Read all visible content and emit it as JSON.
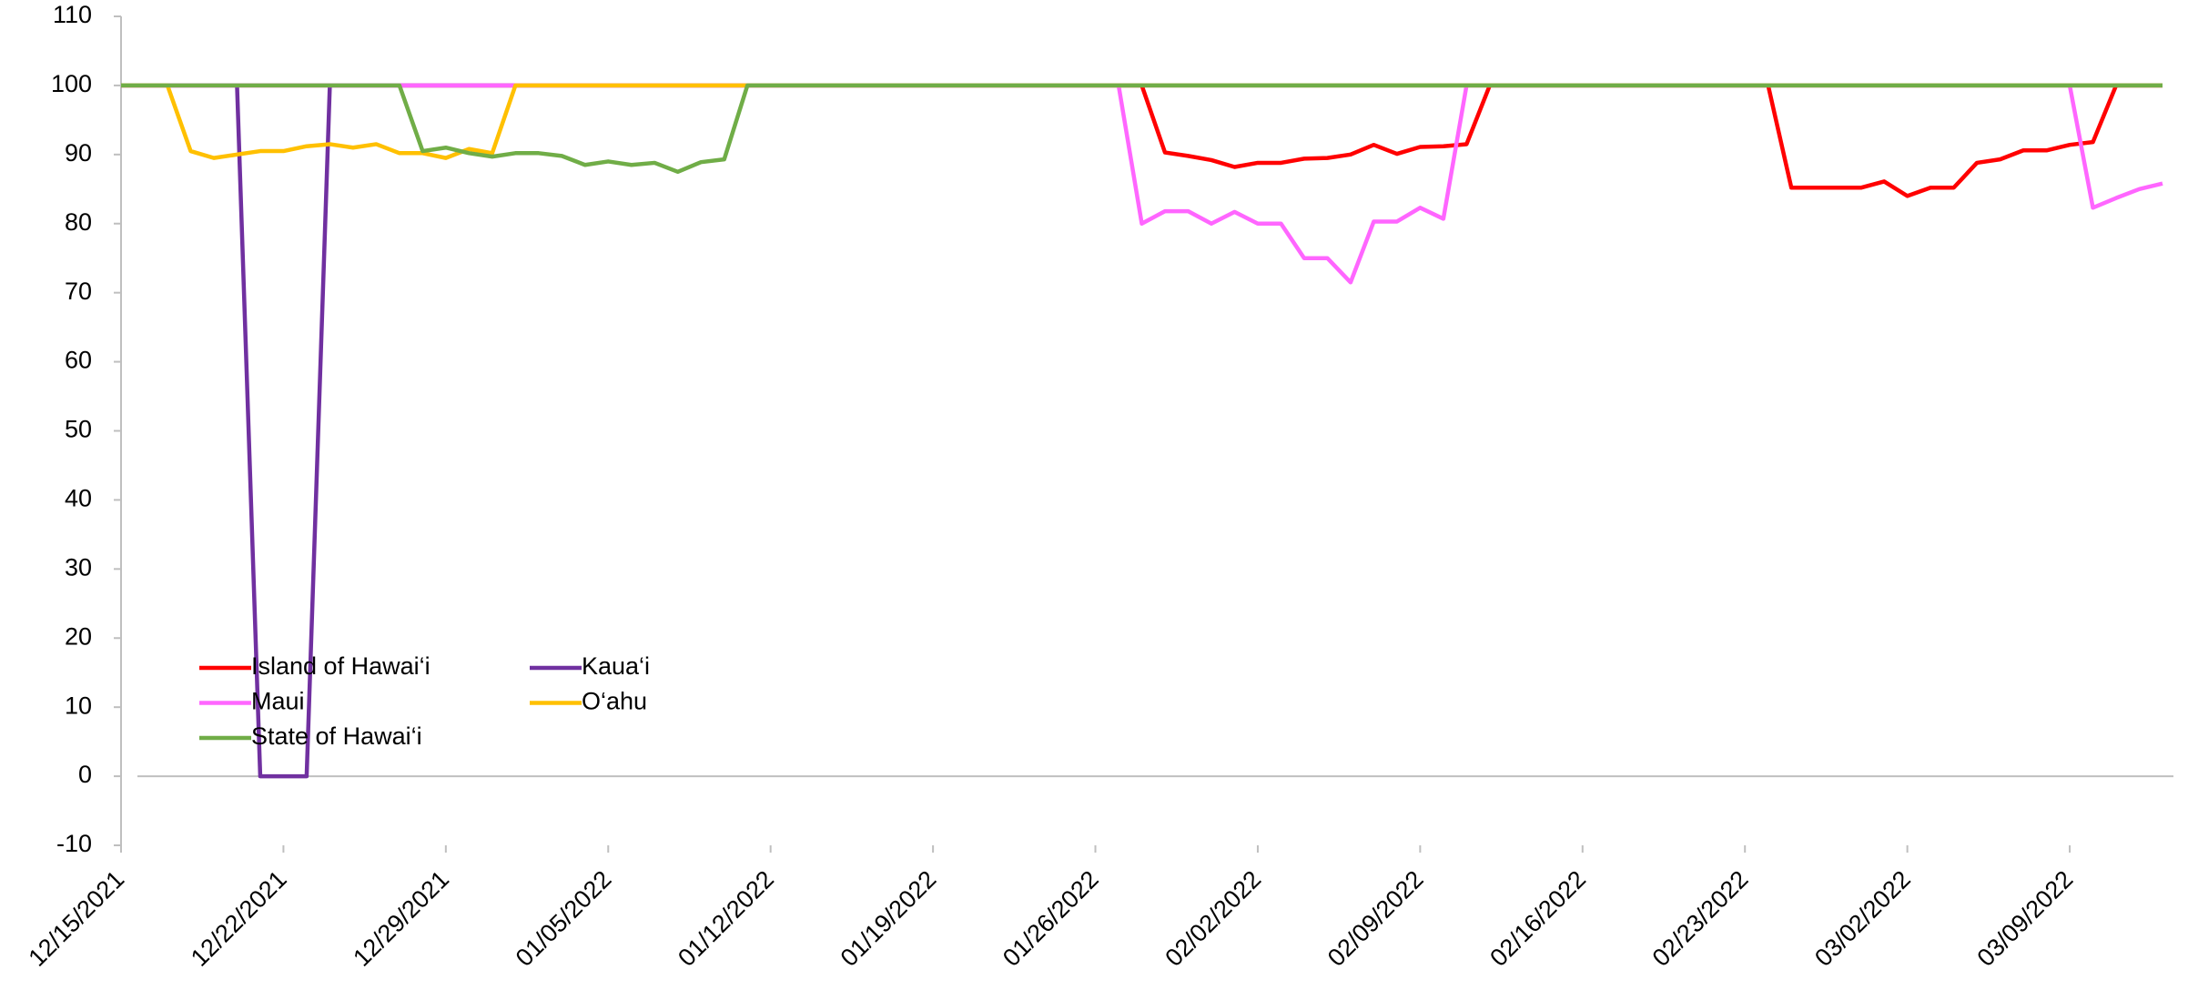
{
  "chart_data": {
    "type": "line",
    "x": [
      "12/15/2021",
      "12/16/2021",
      "12/17/2021",
      "12/18/2021",
      "12/19/2021",
      "12/20/2021",
      "12/21/2021",
      "12/22/2021",
      "12/23/2021",
      "12/24/2021",
      "12/25/2021",
      "12/26/2021",
      "12/27/2021",
      "12/28/2021",
      "12/29/2021",
      "12/30/2021",
      "12/31/2021",
      "01/01/2022",
      "01/02/2022",
      "01/03/2022",
      "01/04/2022",
      "01/05/2022",
      "01/06/2022",
      "01/07/2022",
      "01/08/2022",
      "01/09/2022",
      "01/10/2022",
      "01/11/2022",
      "01/12/2022",
      "01/13/2022",
      "01/14/2022",
      "01/15/2022",
      "01/16/2022",
      "01/17/2022",
      "01/18/2022",
      "01/19/2022",
      "01/20/2022",
      "01/21/2022",
      "01/22/2022",
      "01/23/2022",
      "01/24/2022",
      "01/25/2022",
      "01/26/2022",
      "01/27/2022",
      "01/28/2022",
      "01/29/2022",
      "01/30/2022",
      "01/31/2022",
      "02/01/2022",
      "02/02/2022",
      "02/03/2022",
      "02/04/2022",
      "02/05/2022",
      "02/06/2022",
      "02/07/2022",
      "02/08/2022",
      "02/09/2022",
      "02/10/2022",
      "02/11/2022",
      "02/12/2022",
      "02/13/2022",
      "02/14/2022",
      "02/15/2022",
      "02/16/2022",
      "02/17/2022",
      "02/18/2022",
      "02/19/2022",
      "02/20/2022",
      "02/21/2022",
      "02/22/2022",
      "02/23/2022",
      "02/24/2022",
      "02/25/2022",
      "02/26/2022",
      "02/27/2022",
      "02/28/2022",
      "03/01/2022",
      "03/02/2022",
      "03/03/2022",
      "03/04/2022",
      "03/05/2022",
      "03/06/2022",
      "03/07/2022",
      "03/08/2022",
      "03/09/2022",
      "03/10/2022",
      "03/11/2022",
      "03/12/2022",
      "03/13/2022"
    ],
    "series": [
      {
        "name": "Island of Hawai‘i",
        "color": "#ff0000",
        "values": [
          100,
          100,
          100,
          100,
          100,
          100,
          100,
          100,
          100,
          100,
          100,
          100,
          100,
          100,
          100,
          100,
          100,
          100,
          100,
          100,
          100,
          100,
          100,
          100,
          100,
          100,
          100,
          100,
          100,
          100,
          100,
          100,
          100,
          100,
          100,
          100,
          100,
          100,
          100,
          100,
          100,
          100,
          100,
          100,
          100,
          90.3,
          89.8,
          89.2,
          88.2,
          88.8,
          88.8,
          89.4,
          89.5,
          90,
          91.4,
          90.1,
          91.1,
          91.2,
          91.5,
          100,
          100,
          100,
          100,
          100,
          100,
          100,
          100,
          100,
          100,
          100,
          100,
          100,
          85.2,
          85.2,
          85.2,
          85.2,
          86.1,
          84,
          85.2,
          85.2,
          88.8,
          89.3,
          90.6,
          90.6,
          91.4,
          91.8,
          100,
          100,
          100
        ]
      },
      {
        "name": "Kaua‘i",
        "color": "#7030a0",
        "values": [
          100,
          100,
          100,
          100,
          100,
          100,
          0,
          0,
          0,
          100,
          100,
          100,
          100,
          100,
          100,
          100,
          100,
          100,
          100,
          100,
          100,
          100,
          100,
          100,
          100,
          100,
          100,
          100,
          100,
          100,
          100,
          100,
          100,
          100,
          100,
          100,
          100,
          100,
          100,
          100,
          100,
          100,
          100,
          100,
          100,
          100,
          100,
          100,
          100,
          100,
          100,
          100,
          100,
          100,
          100,
          100,
          100,
          100,
          100,
          100,
          100,
          100,
          100,
          100,
          100,
          100,
          100,
          100,
          100,
          100,
          100,
          100,
          100,
          100,
          100,
          100,
          100,
          100,
          100,
          100,
          100,
          100,
          100,
          100,
          100,
          100,
          100,
          100,
          100
        ]
      },
      {
        "name": "Maui",
        "color": "#ff66ff",
        "values": [
          100,
          100,
          100,
          100,
          100,
          100,
          100,
          100,
          100,
          100,
          100,
          100,
          100,
          100,
          100,
          100,
          100,
          100,
          100,
          100,
          100,
          100,
          100,
          100,
          100,
          100,
          100,
          100,
          100,
          100,
          100,
          100,
          100,
          100,
          100,
          100,
          100,
          100,
          100,
          100,
          100,
          100,
          100,
          100,
          80,
          81.8,
          81.8,
          80,
          81.7,
          80,
          80,
          75,
          75,
          71.5,
          80.3,
          80.3,
          82.3,
          80.7,
          100,
          100,
          100,
          100,
          100,
          100,
          100,
          100,
          100,
          100,
          100,
          100,
          100,
          100,
          100,
          100,
          100,
          100,
          100,
          100,
          100,
          100,
          100,
          100,
          100,
          100,
          100,
          82.3,
          83.7,
          85,
          85.8
        ]
      },
      {
        "name": "O‘ahu",
        "color": "#ffc000",
        "values": [
          100,
          100,
          100,
          90.5,
          89.5,
          90,
          90.5,
          90.5,
          91.2,
          91.5,
          91,
          91.5,
          90.2,
          90.2,
          89.5,
          90.8,
          90.2,
          100,
          100,
          100,
          100,
          100,
          100,
          100,
          100,
          100,
          100,
          100,
          100,
          100,
          100,
          100,
          100,
          100,
          100,
          100,
          100,
          100,
          100,
          100,
          100,
          100,
          100,
          100,
          100,
          100,
          100,
          100,
          100,
          100,
          100,
          100,
          100,
          100,
          100,
          100,
          100,
          100,
          100,
          100,
          100,
          100,
          100,
          100,
          100,
          100,
          100,
          100,
          100,
          100,
          100,
          100,
          100,
          100,
          100,
          100,
          100,
          100,
          100,
          100,
          100,
          100,
          100,
          100,
          100,
          100,
          100,
          100,
          100
        ]
      },
      {
        "name": "State of Hawai‘i",
        "color": "#70ad47",
        "values": [
          100,
          100,
          100,
          100,
          100,
          100,
          100,
          100,
          100,
          100,
          100,
          100,
          100,
          90.5,
          91,
          90.2,
          89.7,
          90.2,
          90.2,
          89.8,
          88.5,
          89,
          88.5,
          88.8,
          87.5,
          88.9,
          89.3,
          100,
          100,
          100,
          100,
          100,
          100,
          100,
          100,
          100,
          100,
          100,
          100,
          100,
          100,
          100,
          100,
          100,
          100,
          100,
          100,
          100,
          100,
          100,
          100,
          100,
          100,
          100,
          100,
          100,
          100,
          100,
          100,
          100,
          100,
          100,
          100,
          100,
          100,
          100,
          100,
          100,
          100,
          100,
          100,
          100,
          100,
          100,
          100,
          100,
          100,
          100,
          100,
          100,
          100,
          100,
          100,
          100,
          100,
          100,
          100,
          100,
          100
        ]
      }
    ],
    "xlim": [
      "12/15/2021",
      "03/13/2022"
    ],
    "xticks": [
      "12/15/2021",
      "12/22/2021",
      "12/29/2021",
      "01/05/2022",
      "01/12/2022",
      "01/19/2022",
      "01/26/2022",
      "02/02/2022",
      "02/09/2022",
      "02/16/2022",
      "02/23/2022",
      "03/02/2022",
      "03/09/2022"
    ],
    "ylim": [
      -10,
      110
    ],
    "yticks": [
      -10,
      0,
      10,
      20,
      30,
      40,
      50,
      60,
      70,
      80,
      90,
      100,
      110
    ],
    "grid": false,
    "legend": "lower left"
  }
}
